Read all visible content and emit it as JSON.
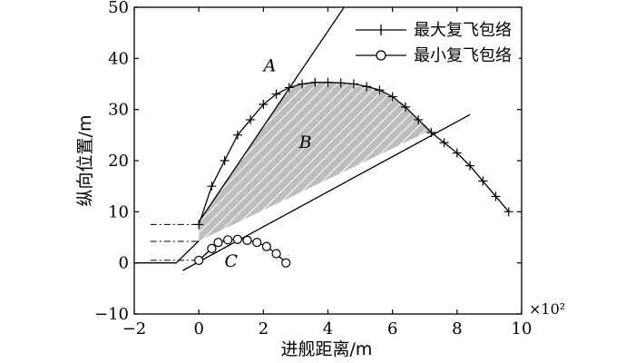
{
  "chart_data": {
    "type": "line",
    "xlabel": "进舰距离/m",
    "ylabel": "纵向位置/m",
    "x_scale_note": "×10²",
    "xlim": [
      -2,
      10
    ],
    "ylim": [
      -10,
      50
    ],
    "x_ticks": [
      "−2",
      "0",
      "2",
      "4",
      "6",
      "8",
      "10"
    ],
    "y_ticks": [
      "−10",
      "0",
      "10",
      "20",
      "30",
      "40",
      "50"
    ],
    "x_tick_values": [
      -2,
      0,
      2,
      4,
      6,
      8,
      10
    ],
    "y_tick_values": [
      -10,
      0,
      10,
      20,
      30,
      40,
      50
    ],
    "grid": false,
    "legend_position": "top-right",
    "series": [
      {
        "name": "最大复飞包络",
        "marker": "plus",
        "x": [
          0,
          0.4,
          0.8,
          1.2,
          1.6,
          2.0,
          2.4,
          2.8,
          3.2,
          3.6,
          4.0,
          4.4,
          4.8,
          5.2,
          5.6,
          6.0,
          6.4,
          6.8,
          7.2,
          7.6,
          8.0,
          8.4,
          8.8,
          9.2,
          9.6
        ],
        "y": [
          7.5,
          15,
          20,
          25,
          28,
          31,
          33,
          34.3,
          35,
          35.3,
          35.3,
          35.2,
          35,
          34.5,
          33.8,
          32.5,
          30.5,
          28,
          25.5,
          23.5,
          21.5,
          19,
          16,
          13,
          10
        ]
      },
      {
        "name": "最小复飞包络",
        "marker": "circle",
        "x": [
          0,
          0.4,
          0.6,
          0.9,
          1.2,
          1.5,
          1.8,
          2.1,
          2.4,
          2.7
        ],
        "y": [
          0.5,
          2.8,
          4.0,
          4.5,
          4.6,
          4.4,
          4.0,
          3.2,
          1.8,
          0
        ]
      }
    ],
    "lines": {
      "upper": [
        [
          0,
          8
        ],
        [
          4.5,
          50
        ]
      ],
      "lower": [
        [
          -0.5,
          -1.5
        ],
        [
          8.4,
          29
        ]
      ],
      "ground": [
        [
          -2,
          0
        ],
        [
          -0.7,
          0
        ]
      ]
    },
    "shaded_region": [
      [
        0,
        4.3
      ],
      [
        0,
        7.5
      ],
      [
        0.4,
        12
      ],
      [
        2.8,
        34.3
      ],
      [
        3.6,
        35.3
      ],
      [
        4.4,
        35.2
      ],
      [
        5.6,
        33.8
      ],
      [
        6.4,
        30.5
      ],
      [
        7.2,
        26
      ],
      [
        0,
        4.3
      ]
    ],
    "dashdot_y": [
      7.5,
      4.2,
      0.5
    ],
    "annotations": [
      {
        "text": "A",
        "x": 2.2,
        "y": 37.5
      },
      {
        "text": "B",
        "x": 3.3,
        "y": 22.5
      },
      {
        "text": "C",
        "x": 1.0,
        "y": -0.8
      }
    ]
  }
}
